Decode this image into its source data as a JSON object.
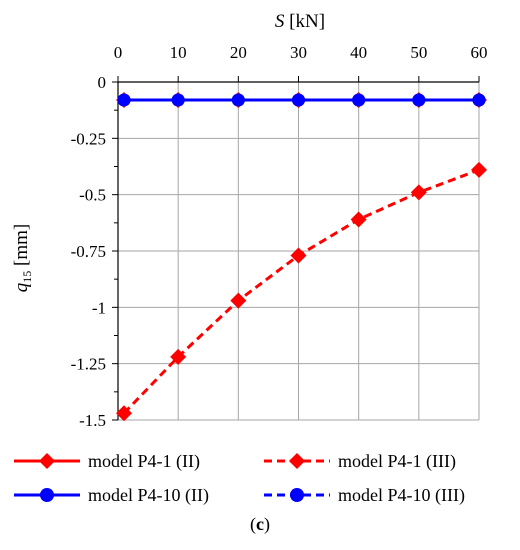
{
  "chart_data": {
    "type": "line",
    "xlabel_italic": "S",
    "xlabel_unit": " [kN]",
    "ylabel_italic": "q",
    "ylabel_sub": "15",
    "ylabel_unit": " [mm]",
    "x_axis_position": "top",
    "grid": true,
    "xlim": [
      0,
      60
    ],
    "ylim": [
      -1.5,
      0
    ],
    "x_ticks": [
      0,
      10,
      20,
      30,
      40,
      50,
      60
    ],
    "x_tick_labels": [
      "0",
      "10",
      "20",
      "30",
      "40",
      "50",
      "60"
    ],
    "y_ticks": [
      0,
      -0.25,
      -0.5,
      -0.75,
      -1,
      -1.25,
      -1.5
    ],
    "y_tick_labels": [
      "0",
      "-0.25",
      "-0.5",
      "-0.75",
      "-1",
      "-1.25",
      "-1.5"
    ],
    "legend_position": "bottom",
    "series": [
      {
        "name": "model P4-1 (II)",
        "color": "#ff0000",
        "dash": "solid",
        "marker": "diamond",
        "x": [
          1,
          10,
          20,
          30,
          40,
          50,
          60
        ],
        "y": [
          -0.08,
          -0.08,
          -0.08,
          -0.08,
          -0.08,
          -0.08,
          -0.08
        ]
      },
      {
        "name": "model P4-1 (III)",
        "color": "#ff0000",
        "dash": "dashed",
        "marker": "diamond",
        "x": [
          1,
          10,
          20,
          30,
          40,
          50,
          60
        ],
        "y": [
          -1.47,
          -1.22,
          -0.97,
          -0.77,
          -0.61,
          -0.49,
          -0.39
        ]
      },
      {
        "name": "model P4-10 (II)",
        "color": "#0000ff",
        "dash": "solid",
        "marker": "circle",
        "x": [
          1,
          10,
          20,
          30,
          40,
          50,
          60
        ],
        "y": [
          -0.08,
          -0.08,
          -0.08,
          -0.08,
          -0.08,
          -0.08,
          -0.08
        ]
      },
      {
        "name": "model P4-10 (III)",
        "color": "#0000ff",
        "dash": "dashed",
        "marker": "circle",
        "x": [
          1,
          10,
          20,
          30,
          40,
          50,
          60
        ],
        "y": [
          -0.08,
          -0.08,
          -0.08,
          -0.08,
          -0.08,
          -0.08,
          -0.08
        ]
      }
    ]
  },
  "caption": {
    "open": "(",
    "letter": "c",
    "close": ")"
  }
}
